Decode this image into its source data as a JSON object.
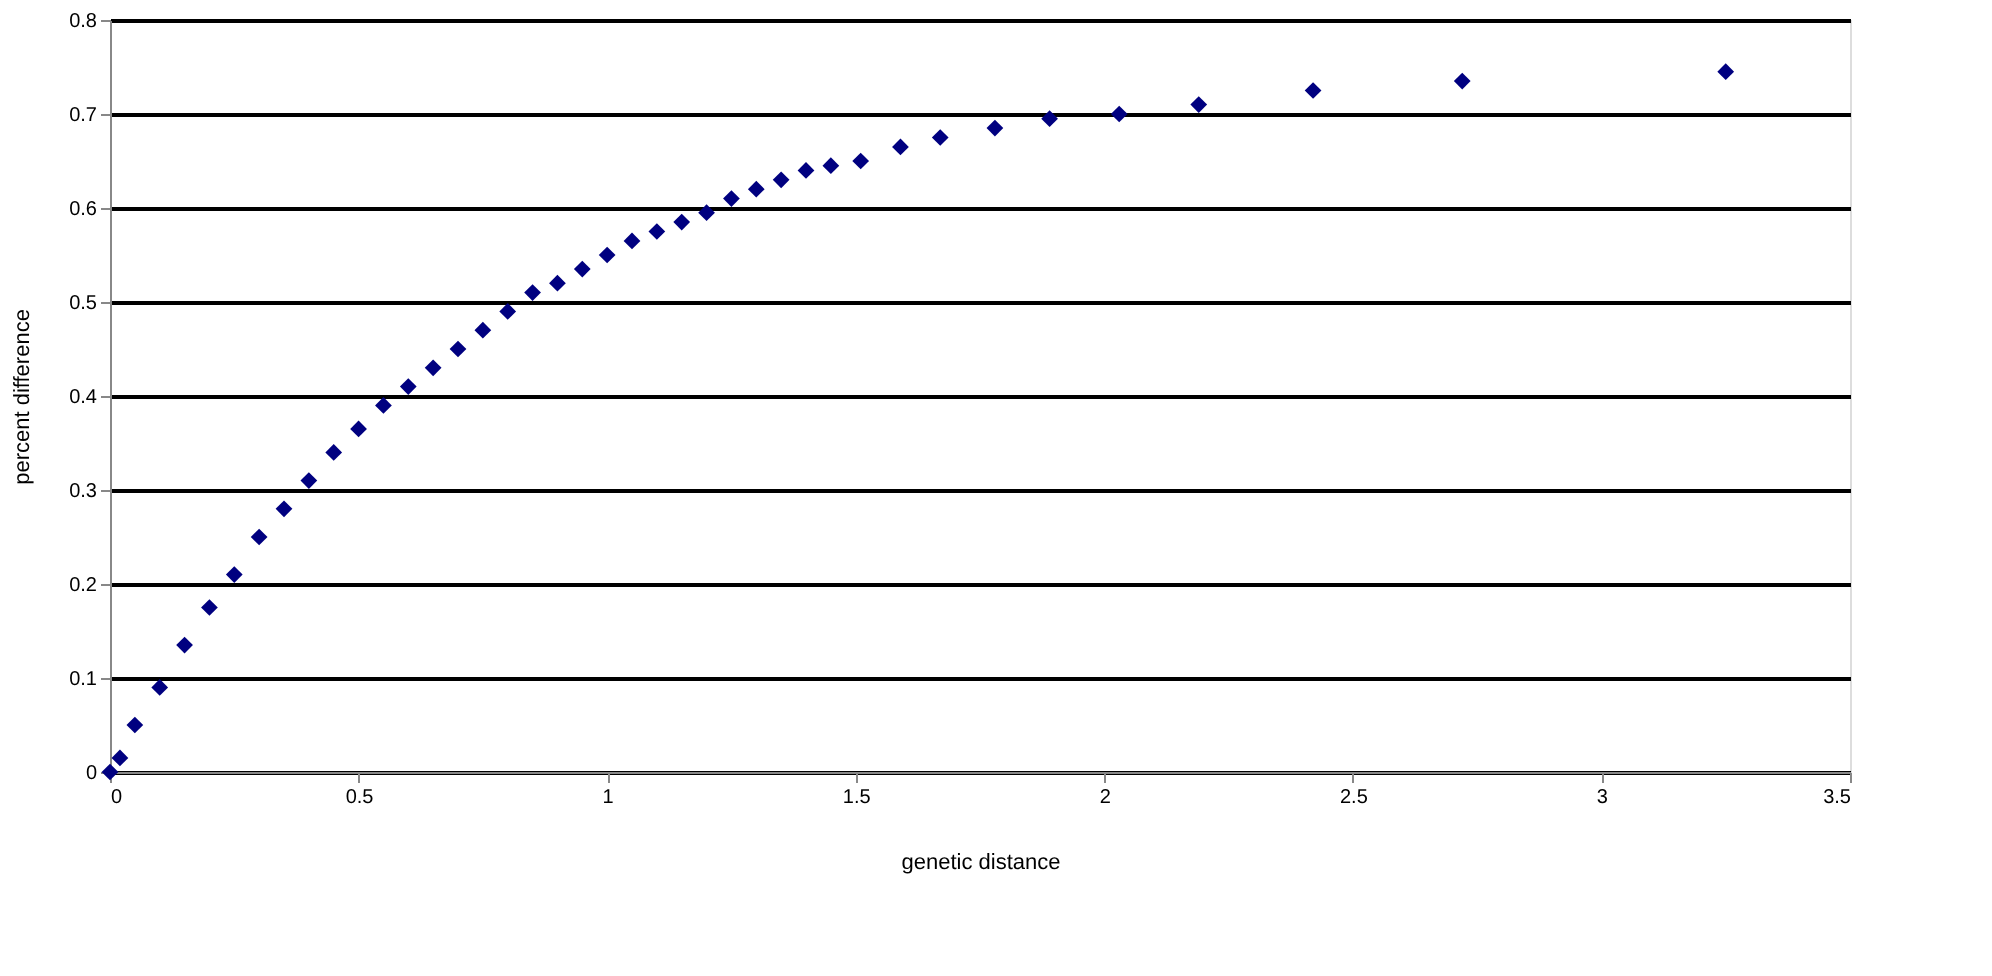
{
  "chart_data": {
    "type": "scatter",
    "xlabel": "genetic distance",
    "ylabel": "percent difference",
    "x": [
      0,
      0.02,
      0.05,
      0.1,
      0.15,
      0.2,
      0.25,
      0.3,
      0.35,
      0.4,
      0.45,
      0.5,
      0.55,
      0.6,
      0.65,
      0.7,
      0.75,
      0.8,
      0.85,
      0.9,
      0.95,
      1.0,
      1.05,
      1.1,
      1.15,
      1.2,
      1.25,
      1.3,
      1.35,
      1.4,
      1.45,
      1.51,
      1.59,
      1.67,
      1.78,
      1.89,
      2.03,
      2.19,
      2.42,
      2.72,
      3.25
    ],
    "series": [
      {
        "color": "#000080",
        "values": [
          0,
          0.015,
          0.05,
          0.09,
          0.135,
          0.175,
          0.21,
          0.25,
          0.28,
          0.31,
          0.34,
          0.365,
          0.39,
          0.41,
          0.43,
          0.45,
          0.47,
          0.49,
          0.51,
          0.52,
          0.535,
          0.55,
          0.565,
          0.575,
          0.585,
          0.595,
          0.61,
          0.62,
          0.63,
          0.64,
          0.645,
          0.65,
          0.665,
          0.675,
          0.685,
          0.695,
          0.7,
          0.71,
          0.725,
          0.735,
          0.745
        ]
      }
    ],
    "xlim": [
      0,
      3.5
    ],
    "xticks": [
      0,
      0.5,
      1,
      1.5,
      2,
      2.5,
      3,
      3.5
    ],
    "ylim": [
      0,
      0.8
    ],
    "yticks": [
      0,
      0.1,
      0.2,
      0.3,
      0.4,
      0.5,
      0.6,
      0.7,
      0.8
    ],
    "grid": "y",
    "marker": "diamond"
  }
}
